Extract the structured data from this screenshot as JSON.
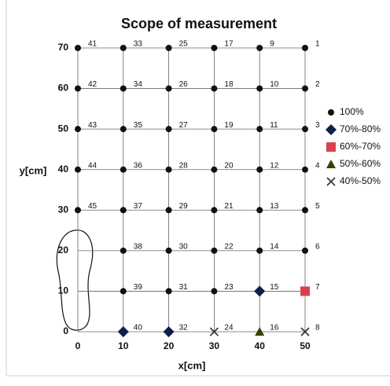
{
  "chart_data": {
    "type": "scatter",
    "title": "Scope of measurement",
    "x_label": "x[cm]",
    "y_label": "y[cm]",
    "xlim": [
      0,
      50
    ],
    "ylim": [
      0,
      70
    ],
    "xticks": [
      0,
      10,
      20,
      30,
      40,
      50
    ],
    "yticks": [
      0,
      10,
      20,
      30,
      40,
      50,
      60,
      70
    ],
    "grid": true,
    "legend": "right",
    "series": [
      {
        "name": "100%",
        "marker": "circle",
        "color": "#111111",
        "x": [
          50,
          50,
          50,
          50,
          50,
          50,
          40,
          40,
          40,
          40,
          40,
          40,
          30,
          30,
          30,
          30,
          30,
          30,
          30,
          20,
          20,
          20,
          20,
          20,
          20,
          20,
          10,
          10,
          10,
          10,
          10,
          10,
          10,
          0,
          0,
          0,
          0,
          0
        ],
        "y": [
          70,
          60,
          50,
          40,
          30,
          20,
          70,
          60,
          50,
          40,
          30,
          20,
          70,
          60,
          50,
          40,
          30,
          20,
          10,
          70,
          60,
          50,
          40,
          30,
          20,
          10,
          70,
          60,
          50,
          40,
          30,
          20,
          10,
          70,
          60,
          50,
          40,
          30
        ],
        "labels": [
          1,
          2,
          3,
          4,
          5,
          6,
          9,
          10,
          11,
          12,
          13,
          14,
          17,
          18,
          19,
          20,
          21,
          22,
          23,
          25,
          26,
          27,
          28,
          29,
          30,
          31,
          33,
          34,
          35,
          36,
          37,
          38,
          39,
          41,
          42,
          43,
          44,
          45
        ]
      },
      {
        "name": "70%-80%",
        "marker": "diamond",
        "color": "#0d1f4a",
        "x": [
          40,
          20,
          10
        ],
        "y": [
          10,
          0,
          0
        ],
        "labels": [
          15,
          32,
          40
        ]
      },
      {
        "name": "60%-70%",
        "marker": "square",
        "color": "#d9414e",
        "x": [
          50
        ],
        "y": [
          10
        ],
        "labels": [
          7
        ]
      },
      {
        "name": "50%-60%",
        "marker": "triangle",
        "color": "#3a4200",
        "x": [
          40
        ],
        "y": [
          0
        ],
        "labels": [
          16
        ]
      },
      {
        "name": "40%-50%",
        "marker": "x",
        "color": "#333333",
        "x": [
          50,
          30
        ],
        "y": [
          0,
          0
        ],
        "labels": [
          8,
          24
        ]
      }
    ]
  }
}
